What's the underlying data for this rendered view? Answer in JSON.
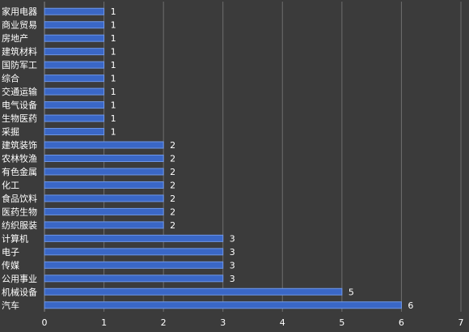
{
  "colors": {
    "background": "#3b3b3b",
    "bar_fill": "#3a67c6",
    "bar_stroke": "#6f97e6",
    "grid": "#6e6e6e",
    "text": "#ffffff"
  },
  "chart_data": {
    "type": "bar",
    "orientation": "horizontal",
    "categories": [
      "家用电器",
      "商业贸易",
      "房地产",
      "建筑材料",
      "国防军工",
      "综合",
      "交通运输",
      "电气设备",
      "生物医药",
      "采掘",
      "建筑装饰",
      "农林牧渔",
      "有色金属",
      "化工",
      "食品饮料",
      "医药生物",
      "纺织服装",
      "计算机",
      "电子",
      "传媒",
      "公用事业",
      "机械设备",
      "汽车"
    ],
    "values": [
      1,
      1,
      1,
      1,
      1,
      1,
      1,
      1,
      1,
      1,
      2,
      2,
      2,
      2,
      2,
      2,
      2,
      3,
      3,
      3,
      3,
      5,
      6
    ],
    "xlim": [
      0,
      7
    ],
    "xticks": [
      0,
      1,
      2,
      3,
      4,
      5,
      6,
      7
    ],
    "data_labels": true,
    "grid": "vertical",
    "title": "",
    "xlabel": "",
    "ylabel": ""
  }
}
